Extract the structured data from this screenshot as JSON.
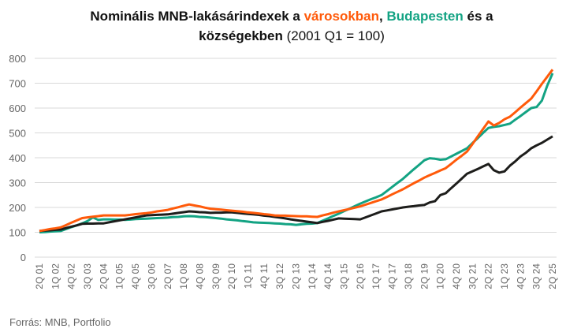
{
  "chart_data": {
    "type": "line",
    "title_parts": {
      "prefix": "Nominális MNB-lakásárindexek a ",
      "cities": "városokban",
      "sep": ", ",
      "budapest": "Budapesten",
      "mid": " és a",
      "villages": "községekben",
      "suffix": " (2001 Q1 = 100)"
    },
    "xlabel": "",
    "ylabel": "",
    "ylim": [
      0,
      800
    ],
    "yticks": [
      0,
      100,
      200,
      300,
      400,
      500,
      600,
      700,
      800
    ],
    "grid": true,
    "x_start": "2001 Q2",
    "x_end": "2025 Q2",
    "x_tick_every": 3,
    "x_tick_labels": [
      "2Q 01",
      "1Q 02",
      "4Q 02",
      "3Q 03",
      "2Q 04",
      "1Q 05",
      "4Q 05",
      "3Q 06",
      "2Q 07",
      "1Q 08",
      "4Q 08",
      "3Q 09",
      "2Q 10",
      "1Q 11",
      "4Q 11",
      "3Q 12",
      "2Q 13",
      "1Q 14",
      "4Q 14",
      "3Q 15",
      "2Q 16",
      "1Q 17",
      "4Q 17",
      "3Q 18",
      "2Q 19",
      "1Q 20",
      "4Q 20",
      "3Q 21",
      "2Q 22",
      "1Q 23",
      "4Q 23",
      "3Q 24",
      "2Q 25"
    ],
    "series": [
      {
        "name": "városokban",
        "color": "#ff5a0a",
        "values": [
          105,
          109,
          113,
          116,
          120,
          129,
          139,
          148,
          157,
          160,
          163,
          165,
          168,
          168,
          168,
          168,
          168,
          170,
          173,
          175,
          177,
          180,
          184,
          187,
          190,
          196,
          201,
          207,
          212,
          208,
          204,
          199,
          195,
          193,
          191,
          189,
          187,
          185,
          183,
          180,
          178,
          176,
          173,
          171,
          168,
          167,
          167,
          166,
          165,
          164,
          164,
          163,
          162,
          168,
          173,
          179,
          184,
          189,
          194,
          199,
          204,
          211,
          218,
          225,
          232,
          242,
          253,
          263,
          273,
          285,
          297,
          308,
          320,
          330,
          339,
          349,
          358,
          375,
          392,
          408,
          425,
          455,
          486,
          516,
          546,
          530,
          540,
          555,
          565,
          583,
          602,
          620,
          638,
          667,
          697,
          726,
          755
        ]
      },
      {
        "name": "Budapesten",
        "color": "#13a383",
        "values": [
          100,
          101,
          103,
          104,
          105,
          113,
          121,
          128,
          136,
          145,
          160,
          150,
          152,
          152,
          151,
          151,
          150,
          151,
          153,
          154,
          155,
          156,
          157,
          158,
          159,
          161,
          162,
          164,
          165,
          164,
          162,
          161,
          159,
          157,
          155,
          152,
          150,
          148,
          145,
          143,
          140,
          139,
          138,
          137,
          136,
          135,
          133,
          132,
          130,
          132,
          134,
          135,
          137,
          147,
          156,
          166,
          175,
          185,
          195,
          205,
          215,
          224,
          233,
          241,
          250,
          266,
          283,
          299,
          315,
          334,
          353,
          371,
          390,
          398,
          396,
          392,
          394,
          405,
          416,
          427,
          438,
          459,
          479,
          500,
          520,
          524,
          527,
          532,
          537,
          553,
          568,
          584,
          600,
          604,
          630,
          690,
          740
        ]
      },
      {
        "name": "községekben",
        "color": "#1d1d1b",
        "values": [
          105,
          107,
          108,
          110,
          111,
          117,
          123,
          128,
          134,
          135,
          135,
          136,
          136,
          140,
          144,
          148,
          152,
          156,
          160,
          164,
          168,
          169,
          170,
          171,
          172,
          175,
          178,
          181,
          184,
          183,
          181,
          180,
          178,
          179,
          179,
          180,
          180,
          178,
          176,
          174,
          172,
          170,
          167,
          165,
          162,
          159,
          156,
          152,
          149,
          146,
          143,
          140,
          137,
          142,
          146,
          151,
          156,
          155,
          154,
          153,
          152,
          160,
          168,
          176,
          184,
          188,
          192,
          196,
          200,
          203,
          205,
          208,
          210,
          220,
          225,
          250,
          257,
          277,
          296,
          316,
          336,
          345,
          355,
          365,
          375,
          350,
          340,
          345,
          368,
          385,
          405,
          420,
          438,
          450,
          460,
          473,
          486
        ]
      }
    ]
  },
  "source": "Forrás: MNB, Portfolio"
}
